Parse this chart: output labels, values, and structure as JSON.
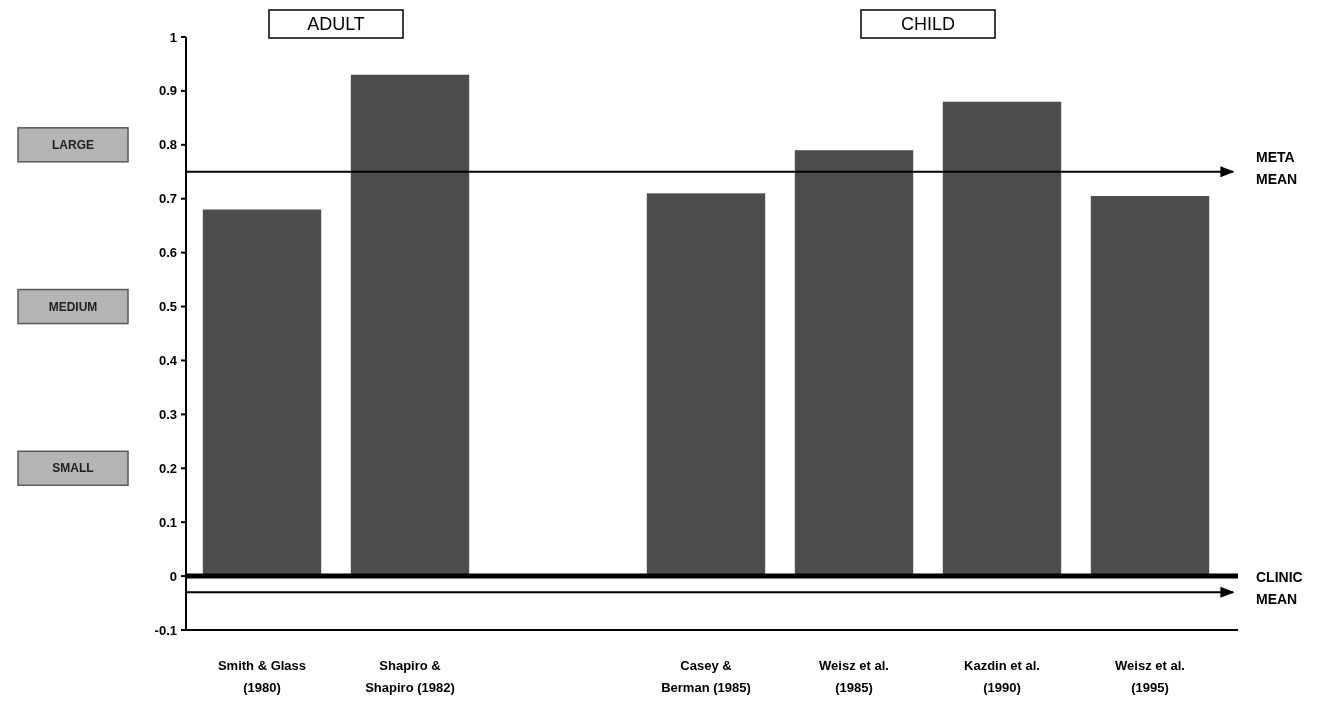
{
  "chart_data": {
    "type": "bar",
    "categories": [
      "Smith & Glass\n(1980)",
      "Shapiro &\nShapiro (1982)",
      null,
      "Casey &\nBerman (1985)",
      "Weisz et al.\n(1985)",
      "Kazdin et al.\n(1990)",
      "Weisz et al.\n(1995)"
    ],
    "values": [
      0.68,
      0.93,
      null,
      0.71,
      0.79,
      0.88,
      0.705
    ],
    "color": "#4d4d4d",
    "ylim": [
      -0.1,
      1
    ],
    "yticks": [
      -0.1,
      0,
      0.1,
      0.2,
      0.3,
      0.4,
      0.5,
      0.6,
      0.7,
      0.8,
      0.9,
      1
    ],
    "ref_lines": [
      {
        "axis": "y",
        "value": 0.75,
        "label": "META MEAN"
      },
      {
        "axis": "y",
        "value": -0.03,
        "label": "CLINIC MEAN"
      }
    ],
    "annotations": [
      "ADULT",
      "CHILD",
      "LARGE",
      "MEDIUM",
      "SMALL"
    ]
  }
}
